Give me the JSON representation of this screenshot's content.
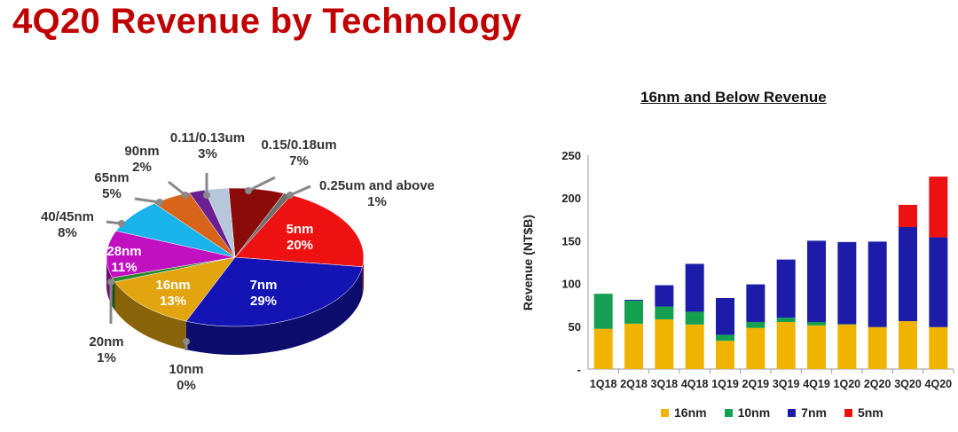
{
  "title": "4Q20 Revenue by Technology",
  "chart_data": [
    {
      "type": "pie",
      "title": "4Q20 Revenue by Technology",
      "slices": [
        {
          "label": "0.15/0.18um",
          "value": 7,
          "pct": "7%",
          "color": "#8b0a0a"
        },
        {
          "label": "0.25um and above",
          "value": 1,
          "pct": "1%",
          "color": "#6e6e6e"
        },
        {
          "label": "5nm",
          "value": 20,
          "pct": "20%",
          "color": "#ee1111"
        },
        {
          "label": "7nm",
          "value": 29,
          "pct": "29%",
          "color": "#1414b4"
        },
        {
          "label": "10nm",
          "value": 0,
          "pct": "0%",
          "color": "#0a8a2a"
        },
        {
          "label": "16nm",
          "value": 13,
          "pct": "13%",
          "color": "#e2a50f"
        },
        {
          "label": "20nm",
          "value": 1,
          "pct": "1%",
          "color": "#2a8a2a"
        },
        {
          "label": "28nm",
          "value": 11,
          "pct": "11%",
          "color": "#c010c0"
        },
        {
          "label": "40/45nm",
          "value": 8,
          "pct": "8%",
          "color": "#19b4ec"
        },
        {
          "label": "65nm",
          "value": 5,
          "pct": "5%",
          "color": "#d8641a"
        },
        {
          "label": "90nm",
          "value": 2,
          "pct": "2%",
          "color": "#6a2090"
        },
        {
          "label": "0.11/0.13um",
          "value": 3,
          "pct": "3%",
          "color": "#b8c8dc"
        }
      ]
    },
    {
      "type": "bar",
      "stacked": true,
      "title": "16nm and Below Revenue",
      "xlabel": "",
      "ylabel": "Revenue (NT$B)",
      "ylim": [
        0,
        250
      ],
      "yticks": [
        "-",
        "50",
        "100",
        "150",
        "200",
        "250"
      ],
      "categories": [
        "1Q18",
        "2Q18",
        "3Q18",
        "4Q18",
        "1Q19",
        "2Q19",
        "3Q19",
        "4Q19",
        "1Q20",
        "2Q20",
        "3Q20",
        "4Q20"
      ],
      "series": [
        {
          "name": "16nm",
          "color": "#f0b400",
          "values": [
            47,
            53,
            58,
            52,
            33,
            48,
            55,
            51,
            52,
            49,
            56,
            49
          ]
        },
        {
          "name": "10nm",
          "color": "#14a050",
          "values": [
            41,
            27,
            15,
            15,
            7,
            7,
            5,
            4,
            0.5,
            0,
            0,
            0
          ]
        },
        {
          "name": "7nm",
          "color": "#1c1ca8",
          "values": [
            0,
            1,
            25,
            56,
            43,
            44,
            68,
            95,
            96,
            100,
            110,
            105
          ]
        },
        {
          "name": "5nm",
          "color": "#ee1111",
          "values": [
            0,
            0,
            0,
            0,
            0,
            0,
            0,
            0,
            0,
            0,
            26,
            71
          ]
        }
      ],
      "legend": "bottom"
    }
  ]
}
